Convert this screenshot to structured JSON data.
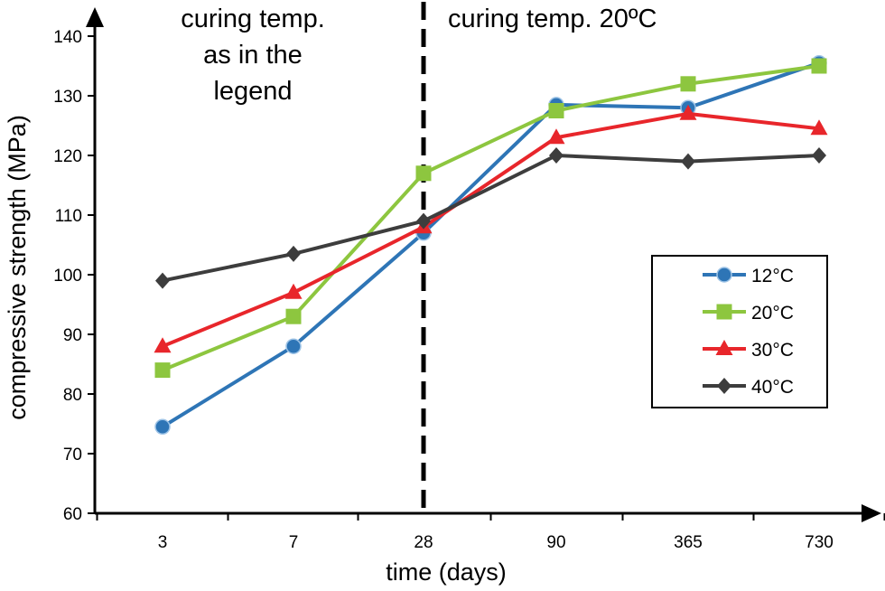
{
  "chart_data": {
    "type": "line",
    "title": "",
    "xlabel": "time (days)",
    "ylabel": "compressive strength (MPa)",
    "categories": [
      "3",
      "7",
      "28",
      "90",
      "365",
      "730"
    ],
    "ylim": [
      60,
      140
    ],
    "yticks": [
      60,
      70,
      80,
      90,
      100,
      110,
      120,
      130,
      140
    ],
    "grid": false,
    "legend_position": "right",
    "series": [
      {
        "name": "12°C",
        "color": "#2e75b6",
        "marker": "circle",
        "values": [
          74.5,
          88,
          107,
          128.5,
          128,
          135.5
        ]
      },
      {
        "name": "20°C",
        "color": "#8dc63f",
        "marker": "square",
        "values": [
          84,
          93,
          117,
          127.5,
          132,
          135
        ]
      },
      {
        "name": "30°C",
        "color": "#e8262b",
        "marker": "triangle",
        "values": [
          88,
          97,
          108,
          123,
          127,
          124.5
        ]
      },
      {
        "name": "40°C",
        "color": "#3d3d3d",
        "marker": "diamond",
        "values": [
          99,
          103.5,
          109,
          120,
          119,
          120
        ]
      }
    ],
    "annotations": {
      "left_lines": [
        "curing temp.",
        "as in the",
        "legend"
      ],
      "right_text": "curing temp. 20ºC",
      "divider_after_category": "28"
    }
  }
}
